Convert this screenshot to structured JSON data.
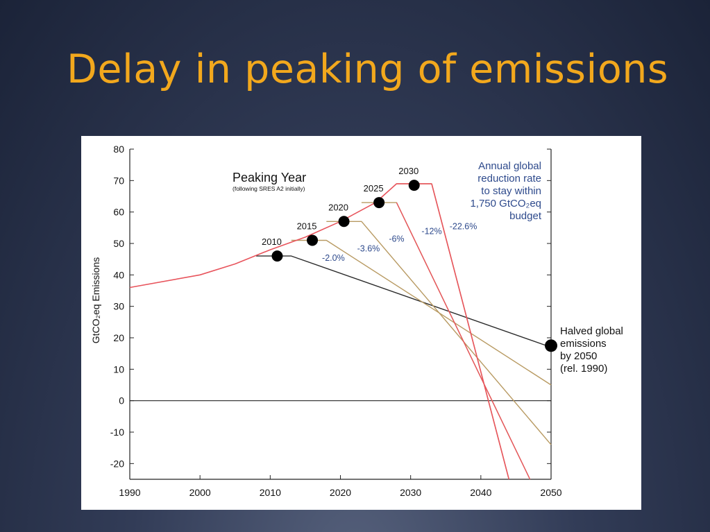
{
  "slide": {
    "title": "Delay in peaking of emissions"
  },
  "chart_data": {
    "type": "line",
    "ylabel": "GtCO₂eq Emissions",
    "xlim": [
      1990,
      2050
    ],
    "ylim": [
      -25,
      80
    ],
    "x_ticks": [
      1990,
      2000,
      2010,
      2020,
      2030,
      2040,
      2050
    ],
    "y_ticks": [
      80,
      70,
      60,
      50,
      40,
      30,
      20,
      10,
      0,
      -10,
      -20
    ],
    "grid": false,
    "colors": {
      "baseline": "#e8545c",
      "pathway": "#b89a62",
      "halved": "#2b2b2b",
      "axis": "#222222",
      "annotation": "#2e4a8c"
    },
    "annotations": {
      "peaking_title": "Peaking Year",
      "peaking_subtitle": "(following SRES A2 initially)",
      "budget_note": [
        "Annual global",
        "reduction rate",
        "to stay within",
        "1,750 GtCO₂eq",
        "budget"
      ],
      "halved_note": [
        "Halved global",
        "emissions",
        "by 2050",
        "(rel. 1990)"
      ]
    },
    "baseline": {
      "x": [
        1990,
        2000,
        2005,
        2010,
        2015,
        2020,
        2025,
        2028,
        2033
      ],
      "y": [
        36,
        40,
        43.5,
        48,
        52,
        57,
        63,
        69,
        69
      ]
    },
    "series": [
      {
        "peak_label": "2010",
        "marker": [
          2011,
          46
        ],
        "rate_label": "-2.0%",
        "rate_pos": [
          2019,
          44.5
        ],
        "x": [
          2008,
          2013,
          2050
        ],
        "y": [
          46,
          46,
          17
        ]
      },
      {
        "peak_label": "2015",
        "marker": [
          2016,
          51
        ],
        "rate_label": "-3.6%",
        "rate_pos": [
          2024,
          47.5
        ],
        "x": [
          2013,
          2018,
          2050
        ],
        "y": [
          51,
          51,
          5
        ]
      },
      {
        "peak_label": "2020",
        "marker": [
          2020.5,
          57
        ],
        "rate_label": "-6%",
        "rate_pos": [
          2028,
          50.5
        ],
        "x": [
          2018,
          2023,
          2050
        ],
        "y": [
          57,
          57,
          -14
        ]
      },
      {
        "peak_label": "2025",
        "marker": [
          2025.5,
          63
        ],
        "rate_label": "-12%",
        "rate_pos": [
          2033,
          53
        ],
        "x": [
          2023,
          2028,
          2047
        ],
        "y": [
          63,
          63,
          -25
        ]
      },
      {
        "peak_label": "2030",
        "marker": [
          2030.5,
          68.5
        ],
        "rate_label": "-22.6%",
        "rate_pos": [
          2037.5,
          54.5
        ],
        "x": [
          2028,
          2033,
          2044
        ],
        "y": [
          69,
          69,
          -25
        ]
      }
    ],
    "end_marker": [
      2050,
      17.5
    ]
  }
}
